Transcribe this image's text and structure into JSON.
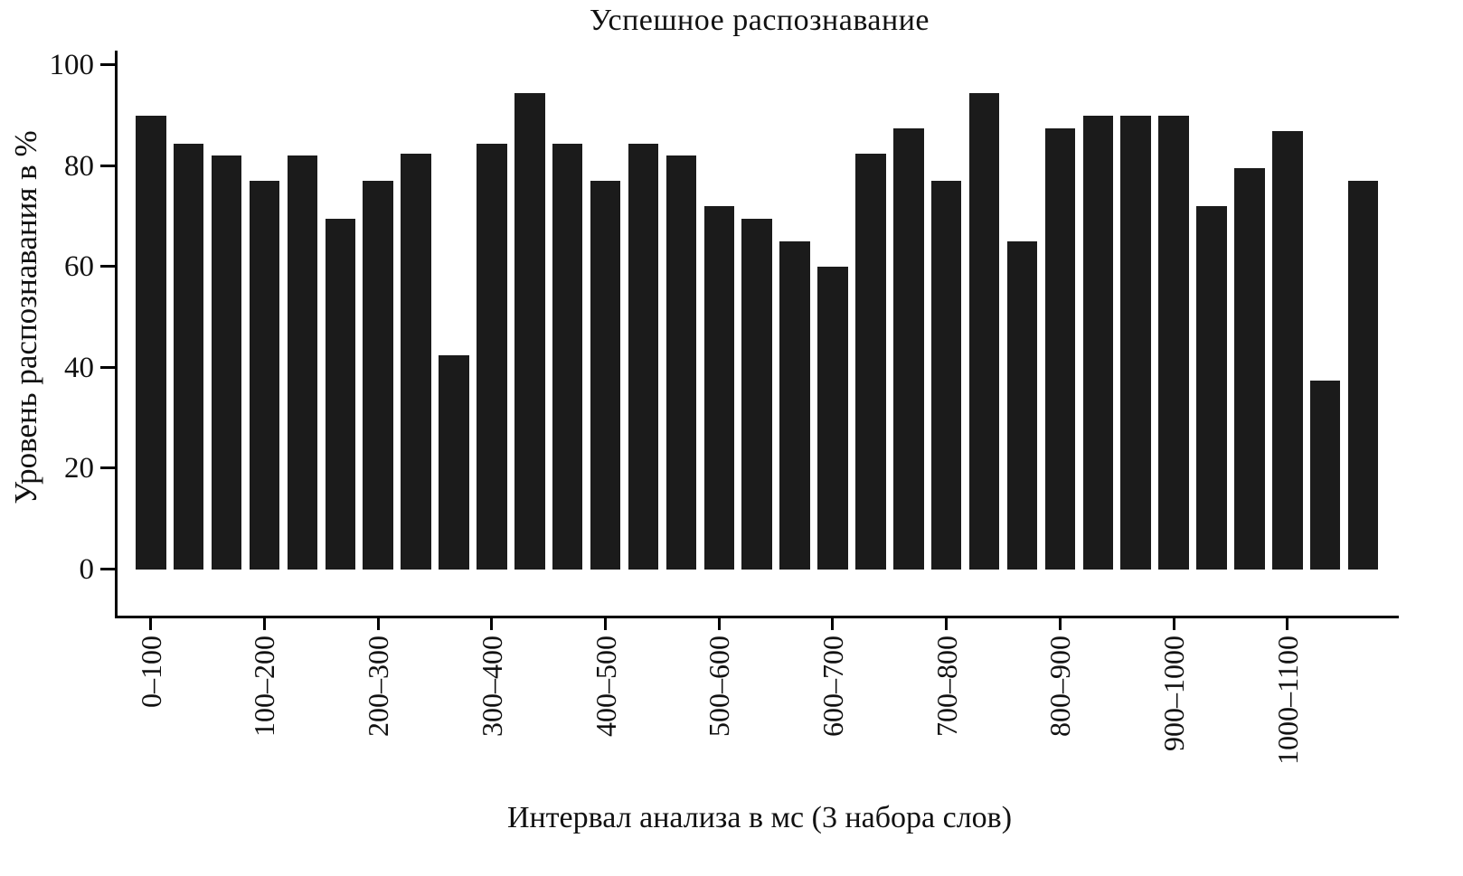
{
  "chart_data": {
    "type": "bar",
    "title": "Успешное распознавание",
    "xlabel": "Интервал анализа в мс (3 набора слов)",
    "ylabel": "Уровень распознавания в %",
    "ylim": [
      0,
      100
    ],
    "yticks": [
      0,
      20,
      40,
      60,
      80,
      100
    ],
    "categories": [
      "0–100",
      "100–200",
      "200–300",
      "300–400",
      "400–500",
      "500–600",
      "600–700",
      "700–800",
      "800–900",
      "900–1000",
      "1000–1100"
    ],
    "bars_per_category": 3,
    "values": [
      90,
      84.5,
      82,
      77,
      82,
      69.5,
      77,
      82.5,
      42.5,
      84.5,
      94.5,
      84.5,
      77,
      84.5,
      82,
      72,
      69.5,
      65,
      60,
      82.5,
      87.5,
      77,
      94.5,
      65,
      87.5,
      90,
      90,
      90,
      72,
      79.5,
      87,
      37.5,
      77
    ],
    "bar_color": "#1b1b1b",
    "axis_color": "#000000",
    "background_color": "#ffffff",
    "legend": "none",
    "grid": "off"
  }
}
